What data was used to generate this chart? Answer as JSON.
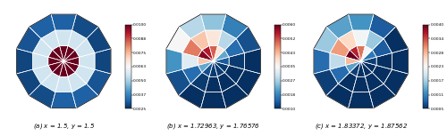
{
  "figures": [
    {
      "label": "(a) $x$ = 1.5, $y$ = 1.5",
      "colorbar_range": [
        0.0025,
        0.01
      ],
      "n_azimuthal": 12,
      "n_polar": 3,
      "sector_values": [
        [
          0.01,
          0.01,
          0.01,
          0.01,
          0.01,
          0.01,
          0.01,
          0.01,
          0.01,
          0.01,
          0.01,
          0.01
        ],
        [
          0.0055,
          0.0055,
          0.0055,
          0.0055,
          0.0055,
          0.0055,
          0.0055,
          0.0055,
          0.0055,
          0.0055,
          0.0055,
          0.0055
        ],
        [
          0.0032,
          0.003,
          0.0028,
          0.0028,
          0.0029,
          0.0032,
          0.0032,
          0.003,
          0.0028,
          0.0028,
          0.0029,
          0.0032
        ]
      ]
    },
    {
      "label": "(b) $x$ = 1.72963, $y$ = 1.76576",
      "colorbar_range": [
        0.001,
        0.006
      ],
      "n_azimuthal": 12,
      "n_polar": 3,
      "sector_values": [
        [
          0.0055,
          0.0058,
          0.0042,
          0.0022,
          0.0013,
          0.0011,
          0.0011,
          0.0011,
          0.0014,
          0.0022,
          0.0038,
          0.005
        ],
        [
          0.0042,
          0.0048,
          0.0032,
          0.0016,
          0.0011,
          0.001,
          0.001,
          0.001,
          0.0011,
          0.0016,
          0.0028,
          0.0038
        ],
        [
          0.0028,
          0.0035,
          0.002,
          0.0013,
          0.001,
          0.001,
          0.001,
          0.001,
          0.001,
          0.0013,
          0.0018,
          0.0025
        ]
      ]
    },
    {
      "label": "(c) $x$ = 1.83372, $y$ = 1.87562",
      "colorbar_range": [
        0.0005,
        0.004
      ],
      "n_azimuthal": 12,
      "n_polar": 3,
      "sector_values": [
        [
          0.0036,
          0.004,
          0.0028,
          0.0013,
          0.0006,
          0.0005,
          0.0005,
          0.0005,
          0.0006,
          0.001,
          0.0022,
          0.0032
        ],
        [
          0.0026,
          0.003,
          0.0018,
          0.0009,
          0.0005,
          0.0005,
          0.0005,
          0.0005,
          0.0005,
          0.0008,
          0.0016,
          0.0022
        ],
        [
          0.0013,
          0.0016,
          0.0009,
          0.0006,
          0.0005,
          0.0005,
          0.0005,
          0.0005,
          0.0005,
          0.0005,
          0.0008,
          0.0012
        ]
      ]
    }
  ],
  "cmap": "RdBu_r",
  "figsize": [
    5.0,
    1.53
  ],
  "dpi": 100,
  "r_bounds": [
    0.0,
    0.33,
    0.66,
    1.0
  ]
}
